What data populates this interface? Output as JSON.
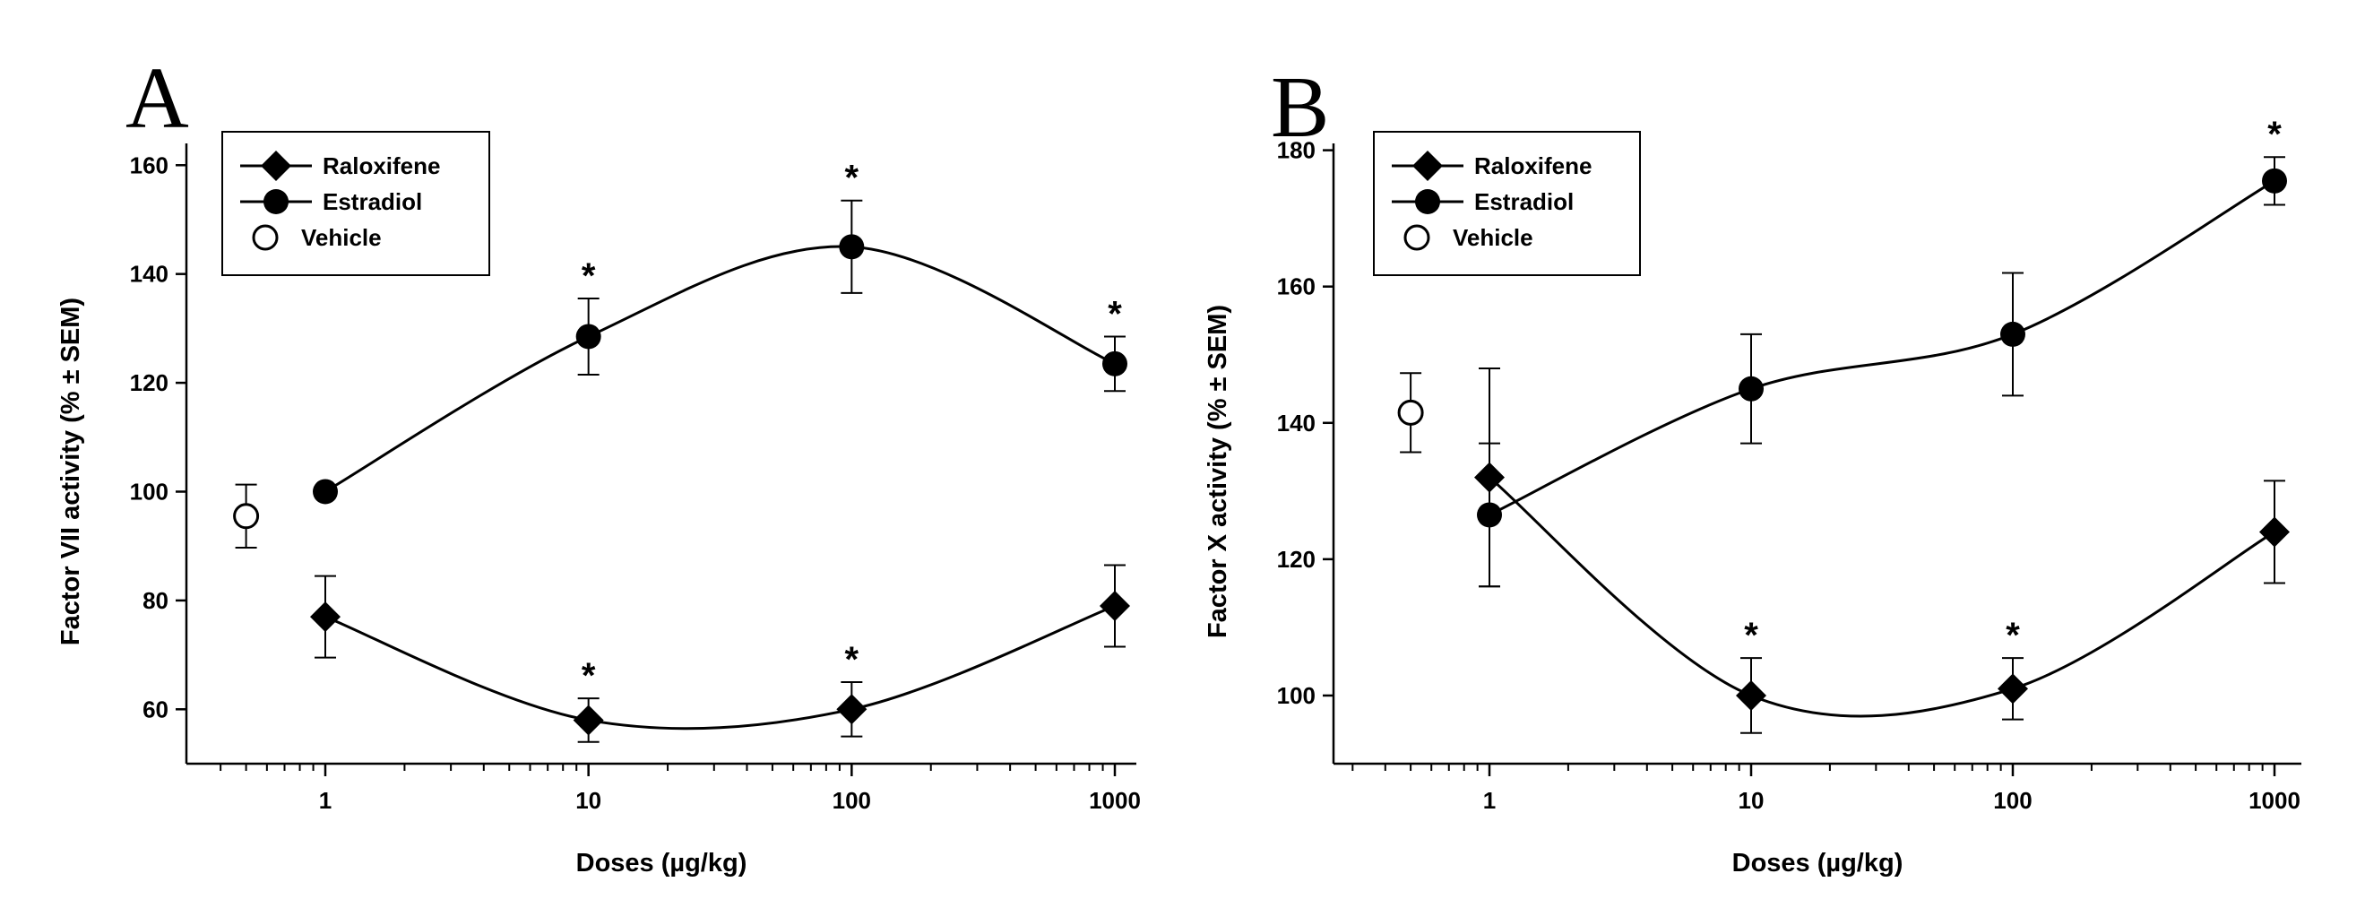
{
  "chart_data": [
    {
      "panel": "A",
      "type": "line",
      "xlabel": "Doses (µg/kg)",
      "ylabel": "Factor VII activity (% ± SEM)",
      "x_scale": "log",
      "x_ticks": [
        "1",
        "10",
        "100",
        "1000"
      ],
      "x_tick_values": [
        1,
        10,
        100,
        1000
      ],
      "ylim": [
        50,
        164
      ],
      "y_ticks": [
        60,
        80,
        100,
        120,
        140,
        160
      ],
      "legend_position": "top-left",
      "grid": false,
      "series": [
        {
          "name": "Raloxifene",
          "marker": "diamond",
          "x": [
            1,
            10,
            100,
            1000
          ],
          "y": [
            77,
            58,
            60,
            79
          ],
          "error": [
            7.5,
            4,
            5,
            7.5
          ],
          "significant": [
            false,
            true,
            true,
            false
          ]
        },
        {
          "name": "Estradiol",
          "marker": "circle",
          "x": [
            1,
            10,
            100,
            1000
          ],
          "y": [
            100,
            128.5,
            145,
            123.5
          ],
          "error": [
            0,
            7,
            8.5,
            5
          ],
          "significant": [
            false,
            true,
            true,
            true
          ]
        },
        {
          "name": "Vehicle",
          "marker": "open-circle",
          "x": [
            0.5
          ],
          "y": [
            95.5
          ],
          "error": [
            5.8
          ],
          "significant": [
            false
          ]
        }
      ]
    },
    {
      "panel": "B",
      "type": "line",
      "xlabel": "Doses (µg/kg)",
      "ylabel": "Factor X activity (% ± SEM)",
      "x_scale": "log",
      "x_ticks": [
        "1",
        "10",
        "100",
        "1000"
      ],
      "x_tick_values": [
        1,
        10,
        100,
        1000
      ],
      "ylim": [
        90,
        181
      ],
      "y_ticks": [
        100,
        120,
        140,
        160,
        180
      ],
      "legend_position": "top-left",
      "grid": false,
      "series": [
        {
          "name": "Raloxifene",
          "marker": "diamond",
          "x": [
            1,
            10,
            100,
            1000
          ],
          "y": [
            132,
            100,
            101,
            124
          ],
          "error": [
            16,
            5.5,
            4.5,
            7.5
          ],
          "significant": [
            false,
            true,
            true,
            false
          ]
        },
        {
          "name": "Estradiol",
          "marker": "circle",
          "x": [
            1,
            10,
            100,
            1000
          ],
          "y": [
            126.5,
            145,
            153,
            175.5
          ],
          "error": [
            10.5,
            8,
            9,
            3.5
          ],
          "significant": [
            false,
            false,
            false,
            true
          ]
        },
        {
          "name": "Vehicle",
          "marker": "open-circle",
          "x": [
            0.5
          ],
          "y": [
            141.5
          ],
          "error": [
            5.8
          ],
          "significant": [
            false
          ]
        }
      ]
    }
  ],
  "significance_symbol": "*",
  "colors": {
    "ink": "#000000",
    "background": "#ffffff"
  }
}
